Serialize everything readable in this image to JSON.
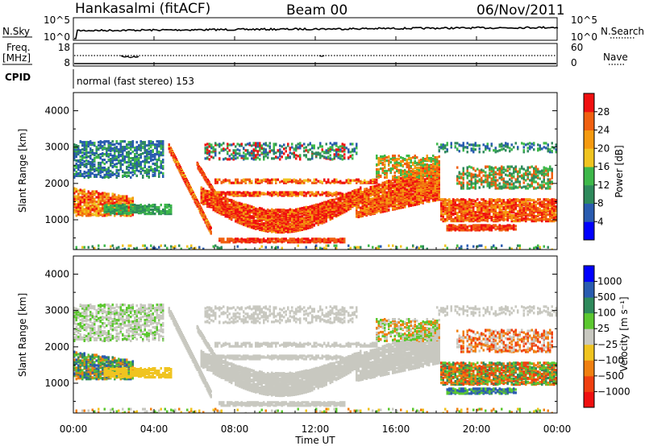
{
  "header": {
    "station": "Hankasalmi (fitACF)",
    "beam": "Beam 00",
    "date": "06/Nov/2011"
  },
  "summary_panels": {
    "nsky_label": "N.Sky",
    "nsearch_label": "N.Search",
    "nsky_ticks": [
      "10^5",
      "10^0"
    ],
    "nsearch_ticks": [
      "10^5",
      "10^0"
    ],
    "freq_label_1": "Freq.",
    "freq_label_2": "[MHz]",
    "freq_ticks": [
      "18",
      "8"
    ],
    "nave_label": "Nave",
    "nave_ticks": [
      "60",
      "0"
    ],
    "cpid_label": "CPID",
    "cpid_text": "normal (fast stereo) 153"
  },
  "colors": {
    "power": [
      "#0000ff",
      "#2a5cb0",
      "#2f8a5c",
      "#3eb84a",
      "#f0c420",
      "#f59a10",
      "#f06010",
      "#f01010"
    ],
    "velocity": [
      "#0000ff",
      "#2a5cb0",
      "#2f8a5c",
      "#5cc830",
      "#c8c8c0",
      "#f0c420",
      "#f08010",
      "#f04010",
      "#f01010"
    ],
    "ground_scatter": "#c8c8c0"
  },
  "chart_data": [
    {
      "type": "heatmap",
      "title": "Power",
      "xlabel": "",
      "ylabel": "Slant Range [km]",
      "xlim": [
        "00:00",
        "24:00"
      ],
      "ylim": [
        180,
        4500
      ],
      "yticks": [
        "1000",
        "2000",
        "3000",
        "4000"
      ],
      "colorbar_label": "Power [dB]",
      "colorbar_ticks": [
        "4",
        "8",
        "12",
        "16",
        "20",
        "24",
        "28"
      ],
      "colorbar_range": [
        0,
        30
      ]
    },
    {
      "type": "heatmap",
      "title": "Velocity",
      "xlabel": "Time UT",
      "ylabel": "Slant Range [km]",
      "xlim": [
        "00:00",
        "24:00"
      ],
      "ylim": [
        180,
        4500
      ],
      "yticks": [
        "1000",
        "2000",
        "3000",
        "4000"
      ],
      "xticks": [
        "00:00",
        "04:00",
        "08:00",
        "12:00",
        "16:00",
        "20:00",
        "00:00"
      ],
      "colorbar_label": "Velocity [m s⁻¹]",
      "colorbar_ticks": [
        "1000",
        "500",
        "100",
        "25",
        "−25",
        "−100",
        "−500",
        "−1000"
      ],
      "colorbar_range": [
        -1000,
        1000
      ]
    }
  ]
}
